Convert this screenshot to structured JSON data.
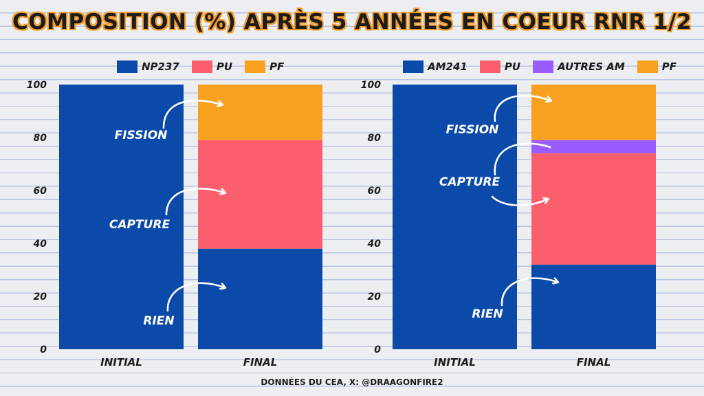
{
  "title": "COMPOSITION (%) APRÈS 5 ANNÉES EN COEUR RNR 1/2",
  "footer": "DONNÉES DU CEA, X: @DRAAGONFIRE2",
  "colors": {
    "blue": "#0b4aa8",
    "red": "#fb5f6e",
    "orange": "#f8a121",
    "purple": "#9a5cff",
    "text": "#1c1c1c",
    "arrow": "#ffffff"
  },
  "chart_data": [
    {
      "type": "bar",
      "stacked": true,
      "categories": [
        "INITIAL",
        "FINAL"
      ],
      "ylim": [
        0,
        100
      ],
      "yticks": [
        "0",
        "20",
        "40",
        "60",
        "80",
        "100"
      ],
      "grid": false,
      "legend_position": "top",
      "series": [
        {
          "name": "NP237",
          "color": "#0b4aa8",
          "values": [
            100,
            38
          ]
        },
        {
          "name": "PU",
          "color": "#fb5f6e",
          "values": [
            0,
            41
          ]
        },
        {
          "name": "PF",
          "color": "#f8a121",
          "values": [
            0,
            21
          ]
        }
      ],
      "annotations": [
        "FISSION",
        "CAPTURE",
        "RIEN"
      ]
    },
    {
      "type": "bar",
      "stacked": true,
      "categories": [
        "INITIAL",
        "FINAL"
      ],
      "ylim": [
        0,
        100
      ],
      "yticks": [
        "0",
        "20",
        "40",
        "60",
        "80",
        "100"
      ],
      "grid": false,
      "legend_position": "top",
      "series": [
        {
          "name": "AM241",
          "color": "#0b4aa8",
          "values": [
            100,
            32
          ]
        },
        {
          "name": "PU",
          "color": "#fb5f6e",
          "values": [
            0,
            42
          ]
        },
        {
          "name": "AUTRES AM",
          "color": "#9a5cff",
          "values": [
            0,
            5
          ]
        },
        {
          "name": "PF",
          "color": "#f8a121",
          "values": [
            0,
            21
          ]
        }
      ],
      "annotations": [
        "FISSION",
        "CAPTURE",
        "RIEN"
      ]
    }
  ]
}
